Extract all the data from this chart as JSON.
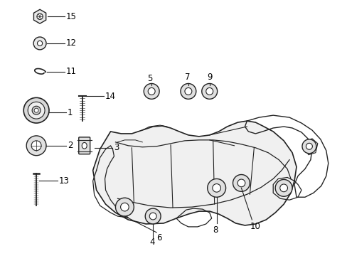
{
  "bg_color": "#ffffff",
  "fig_width": 4.89,
  "fig_height": 3.6,
  "dpi": 100,
  "line_color": "#222222",
  "label_fontsize": 8.5
}
